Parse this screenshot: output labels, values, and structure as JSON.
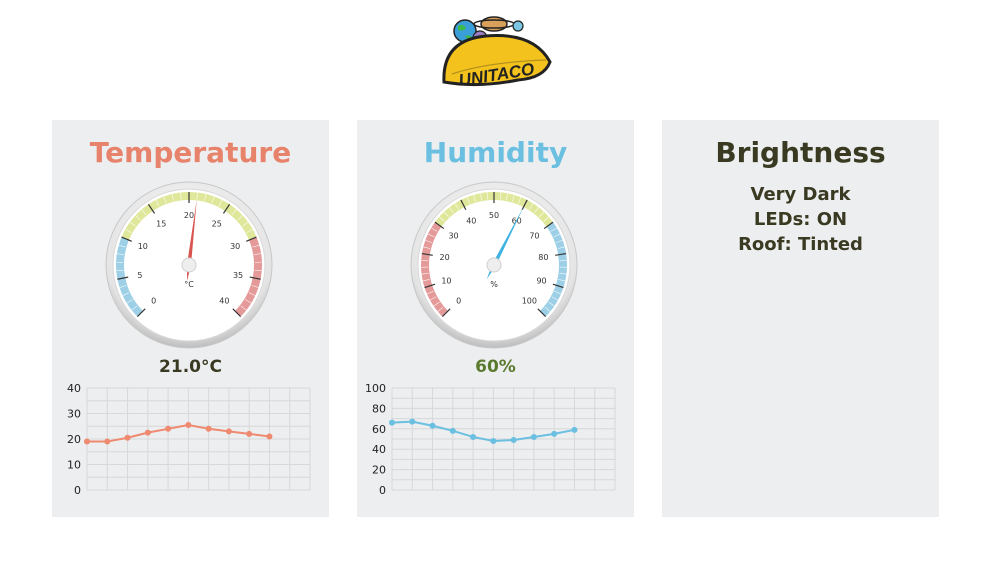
{
  "header": {
    "logo_text": "UNITACO"
  },
  "temperature": {
    "title": "Temperature",
    "title_color": "#e8836b",
    "unit": "°C",
    "reading": "21.0°C",
    "reading_color": "#3a3a22",
    "gauge": {
      "min": 0,
      "max": 40,
      "value": 21,
      "major_ticks": [
        0,
        5,
        10,
        15,
        20,
        25,
        30,
        35,
        40
      ],
      "bands": [
        {
          "from": 0,
          "to": 10,
          "color": "#9dd0e6"
        },
        {
          "from": 10,
          "to": 30,
          "color": "#dfe89a"
        },
        {
          "from": 30,
          "to": 40,
          "color": "#e59a9a"
        }
      ],
      "needle_color": "#d9534f"
    }
  },
  "humidity": {
    "title": "Humidity",
    "title_color": "#6bbfe0",
    "unit": "%",
    "reading": "60%",
    "reading_color": "#5b7a2e",
    "gauge": {
      "min": 0,
      "max": 100,
      "value": 60,
      "major_ticks": [
        0,
        10,
        20,
        30,
        40,
        50,
        60,
        70,
        80,
        90,
        100
      ],
      "bands": [
        {
          "from": 0,
          "to": 30,
          "color": "#e59a9a"
        },
        {
          "from": 30,
          "to": 70,
          "color": "#dfe89a"
        },
        {
          "from": 70,
          "to": 100,
          "color": "#9dd0e6"
        }
      ],
      "needle_color": "#3fb3e0"
    }
  },
  "brightness": {
    "title": "Brightness",
    "title_color": "#3a3a22",
    "lines": [
      "Very Dark",
      "LEDs: ON",
      "Roof: Tinted"
    ]
  },
  "chart_data": [
    {
      "type": "line",
      "series": [
        {
          "values": [
            19,
            19,
            20.5,
            22.5,
            24,
            25.5,
            24,
            23,
            22,
            21
          ],
          "color": "#ef8a70"
        }
      ],
      "yticks": [
        0,
        10,
        20,
        30,
        40
      ],
      "ylim": [
        0,
        40
      ],
      "grid": true,
      "grid_columns": 11
    },
    {
      "type": "line",
      "series": [
        {
          "values": [
            66,
            67,
            63,
            58,
            52,
            48,
            49,
            52,
            55,
            59
          ],
          "color": "#6bbfe0"
        }
      ],
      "yticks": [
        0,
        20,
        40,
        60,
        80,
        100
      ],
      "ylim": [
        0,
        100
      ],
      "grid": true,
      "grid_columns": 11
    }
  ]
}
